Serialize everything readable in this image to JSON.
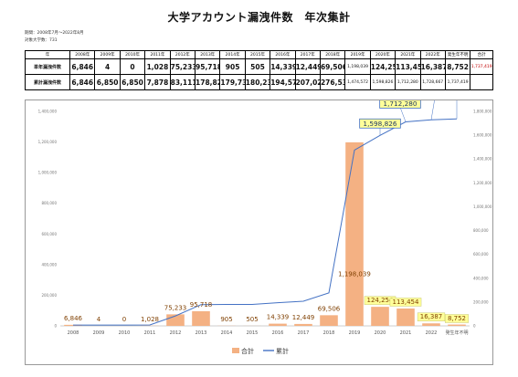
{
  "title": "大学アカウント漏洩件数　年次集計",
  "meta": {
    "period": "期間：2008年7月～2022年8月",
    "target": "対象大学数：731"
  },
  "table": {
    "corner": "年",
    "headers": [
      "2008年",
      "2009年",
      "2010年",
      "2011年",
      "2012年",
      "2013年",
      "2014年",
      "2015年",
      "2016年",
      "2017年",
      "2018年",
      "2019年",
      "2020年",
      "2021年",
      "2022年",
      "発生年不明",
      "合計"
    ],
    "rows": [
      {
        "label": "単年漏洩件数",
        "cells": [
          "6,846",
          "4",
          "0",
          "1,028",
          "75,233",
          "95,718",
          "905",
          "505",
          "14,339",
          "12,449",
          "69,506",
          "1,198,039",
          "124,254",
          "113,454",
          "16,387",
          "8,752",
          "1,737,419"
        ]
      },
      {
        "label": "累計漏洩件数",
        "cells": [
          "6,846",
          "6,850",
          "6,850",
          "7,878",
          "83,111",
          "178,829",
          "179,734",
          "180,239",
          "194,578",
          "207,027",
          "276,533",
          "1,474,572",
          "1,598,826",
          "1,712,280",
          "1,728,667",
          "1,737,419",
          ""
        ]
      }
    ]
  },
  "chart_data": {
    "type": "bar",
    "categories": [
      "2008",
      "2009",
      "2010",
      "2011",
      "2012",
      "2013",
      "2014",
      "2015",
      "2016",
      "2017",
      "2018",
      "2019",
      "2020",
      "2021",
      "2022",
      "発生年不明"
    ],
    "series": [
      {
        "name": "合計",
        "type": "bar",
        "color": "#f4b183",
        "values": [
          6846,
          4,
          0,
          1028,
          75233,
          95718,
          905,
          505,
          14339,
          12449,
          69506,
          1198039,
          124254,
          113454,
          16387,
          8752
        ]
      },
      {
        "name": "累計",
        "type": "line",
        "color": "#4472c4",
        "values": [
          6846,
          6850,
          6850,
          7878,
          83111,
          178829,
          179734,
          180239,
          194578,
          207027,
          276533,
          1474572,
          1598826,
          1712280,
          1728667,
          1737419
        ]
      }
    ],
    "bar_labels": [
      "6,846",
      "4",
      "0",
      "1,028",
      "75,233",
      "95,718",
      "905",
      "505",
      "14,339",
      "12,449",
      "69,506",
      "1,198,039",
      "124,254",
      "113,454",
      "16,387",
      "8,752"
    ],
    "line_callouts": [
      {
        "index": 12,
        "label": "1,598,826"
      },
      {
        "index": 13,
        "label": "1,712,280"
      },
      {
        "index": 14,
        "label": "1,728,667"
      },
      {
        "index": 15,
        "label": "1,737,419"
      }
    ],
    "left_axis": {
      "ylim": [
        0,
        1400000
      ],
      "ticks": [
        "0",
        "200,000",
        "400,000",
        "600,000",
        "800,000",
        "1,000,000",
        "1,200,000",
        "1,400,000"
      ]
    },
    "right_axis": {
      "ylim": [
        0,
        1800000
      ],
      "ticks": [
        "0",
        "200,000",
        "400,000",
        "600,000",
        "800,000",
        "1,000,000",
        "1,200,000",
        "1,400,000",
        "1,600,000",
        "1,800,000"
      ]
    },
    "legend_position": "bottom",
    "grid": false,
    "colors": {
      "bar": "#f4b183",
      "line": "#4472c4",
      "callout_fill": "#ffff99",
      "callout_border": "#4472c4",
      "red_label": "#c00000"
    }
  }
}
